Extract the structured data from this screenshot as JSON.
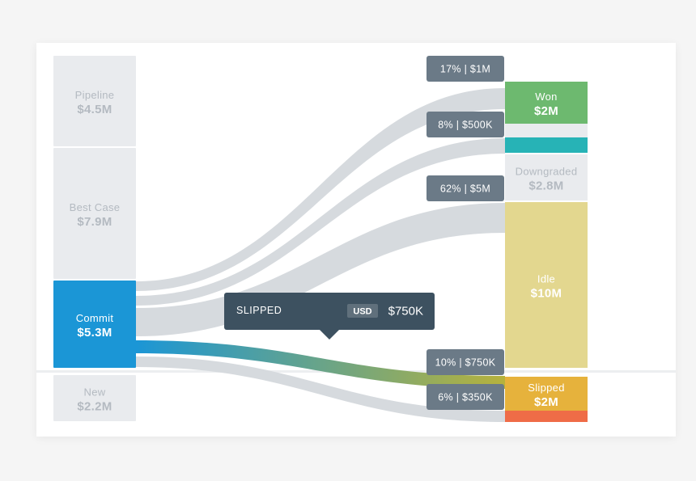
{
  "chart_data": {
    "type": "sankey",
    "unit": "$M",
    "source_nodes": [
      {
        "id": "pipeline",
        "label": "Pipeline",
        "value_text": "$4.5M",
        "value": 4.5,
        "color": "#e9ebee",
        "text_color": "#b4bac1"
      },
      {
        "id": "best_case",
        "label": "Best Case",
        "value_text": "$7.9M",
        "value": 7.9,
        "color": "#e9ebee",
        "text_color": "#b4bac1"
      },
      {
        "id": "commit",
        "label": "Commit",
        "value_text": "$5.3M",
        "value": 5.3,
        "color": "#1b96d6",
        "text_color": "#ffffff",
        "highlighted": true
      },
      {
        "id": "new",
        "label": "New",
        "value_text": "$2.2M",
        "value": 2.2,
        "color": "#e9ebee",
        "text_color": "#b4bac1"
      }
    ],
    "target_nodes": [
      {
        "id": "won",
        "label": "Won",
        "value_text": "$2M",
        "value": 2,
        "color": "#6db96f",
        "text_color": "#ffffff"
      },
      {
        "id": "won_gap",
        "label": "",
        "value_text": "",
        "color": "#e9ebee"
      },
      {
        "id": "teal",
        "label": "",
        "value_text": "",
        "color": "#27b3b6"
      },
      {
        "id": "downgraded",
        "label": "Downgraded",
        "value_text": "$2.8M",
        "value": 2.8,
        "color": "#e9ebee",
        "text_color": "#b4bac1"
      },
      {
        "id": "idle",
        "label": "Idle",
        "value_text": "$10M",
        "value": 10,
        "color": "#e3d78f",
        "text_color": "#ffffff"
      },
      {
        "id": "slipped",
        "label": "Slipped",
        "value_text": "$2M",
        "value": 2,
        "color": "#e6b23c",
        "text_color": "#ffffff"
      },
      {
        "id": "slipped_red",
        "label": "",
        "value_text": "",
        "color": "#ef6c47"
      }
    ],
    "flows": [
      {
        "from": "commit",
        "to": "won",
        "tag": "17% | $1M",
        "percent": 17,
        "value": 1.0,
        "highlighted": false
      },
      {
        "from": "commit",
        "to": "teal",
        "tag": "8% | $500K",
        "percent": 8,
        "value": 0.5,
        "highlighted": false
      },
      {
        "from": "commit",
        "to": "idle",
        "tag": "62% | $5M",
        "percent": 62,
        "value": 5.0,
        "highlighted": false
      },
      {
        "from": "commit",
        "to": "slipped",
        "tag": "10% | $750K",
        "percent": 10,
        "value": 0.75,
        "highlighted": true
      },
      {
        "from": "commit",
        "to": "slipped_red",
        "tag": "6% | $350K",
        "percent": 6,
        "value": 0.35,
        "highlighted": false
      }
    ],
    "tooltip": {
      "title": "SLIPPED",
      "currency": "USD",
      "value_text": "$750K"
    },
    "colors": {
      "flow": "#d6dade",
      "tag_bg": "#6b7a87",
      "tooltip_bg": "#3d5160",
      "chip_bg": "#60707c",
      "highlight_from": "#1b96d6",
      "highlight_to": "#b6b23c"
    }
  }
}
